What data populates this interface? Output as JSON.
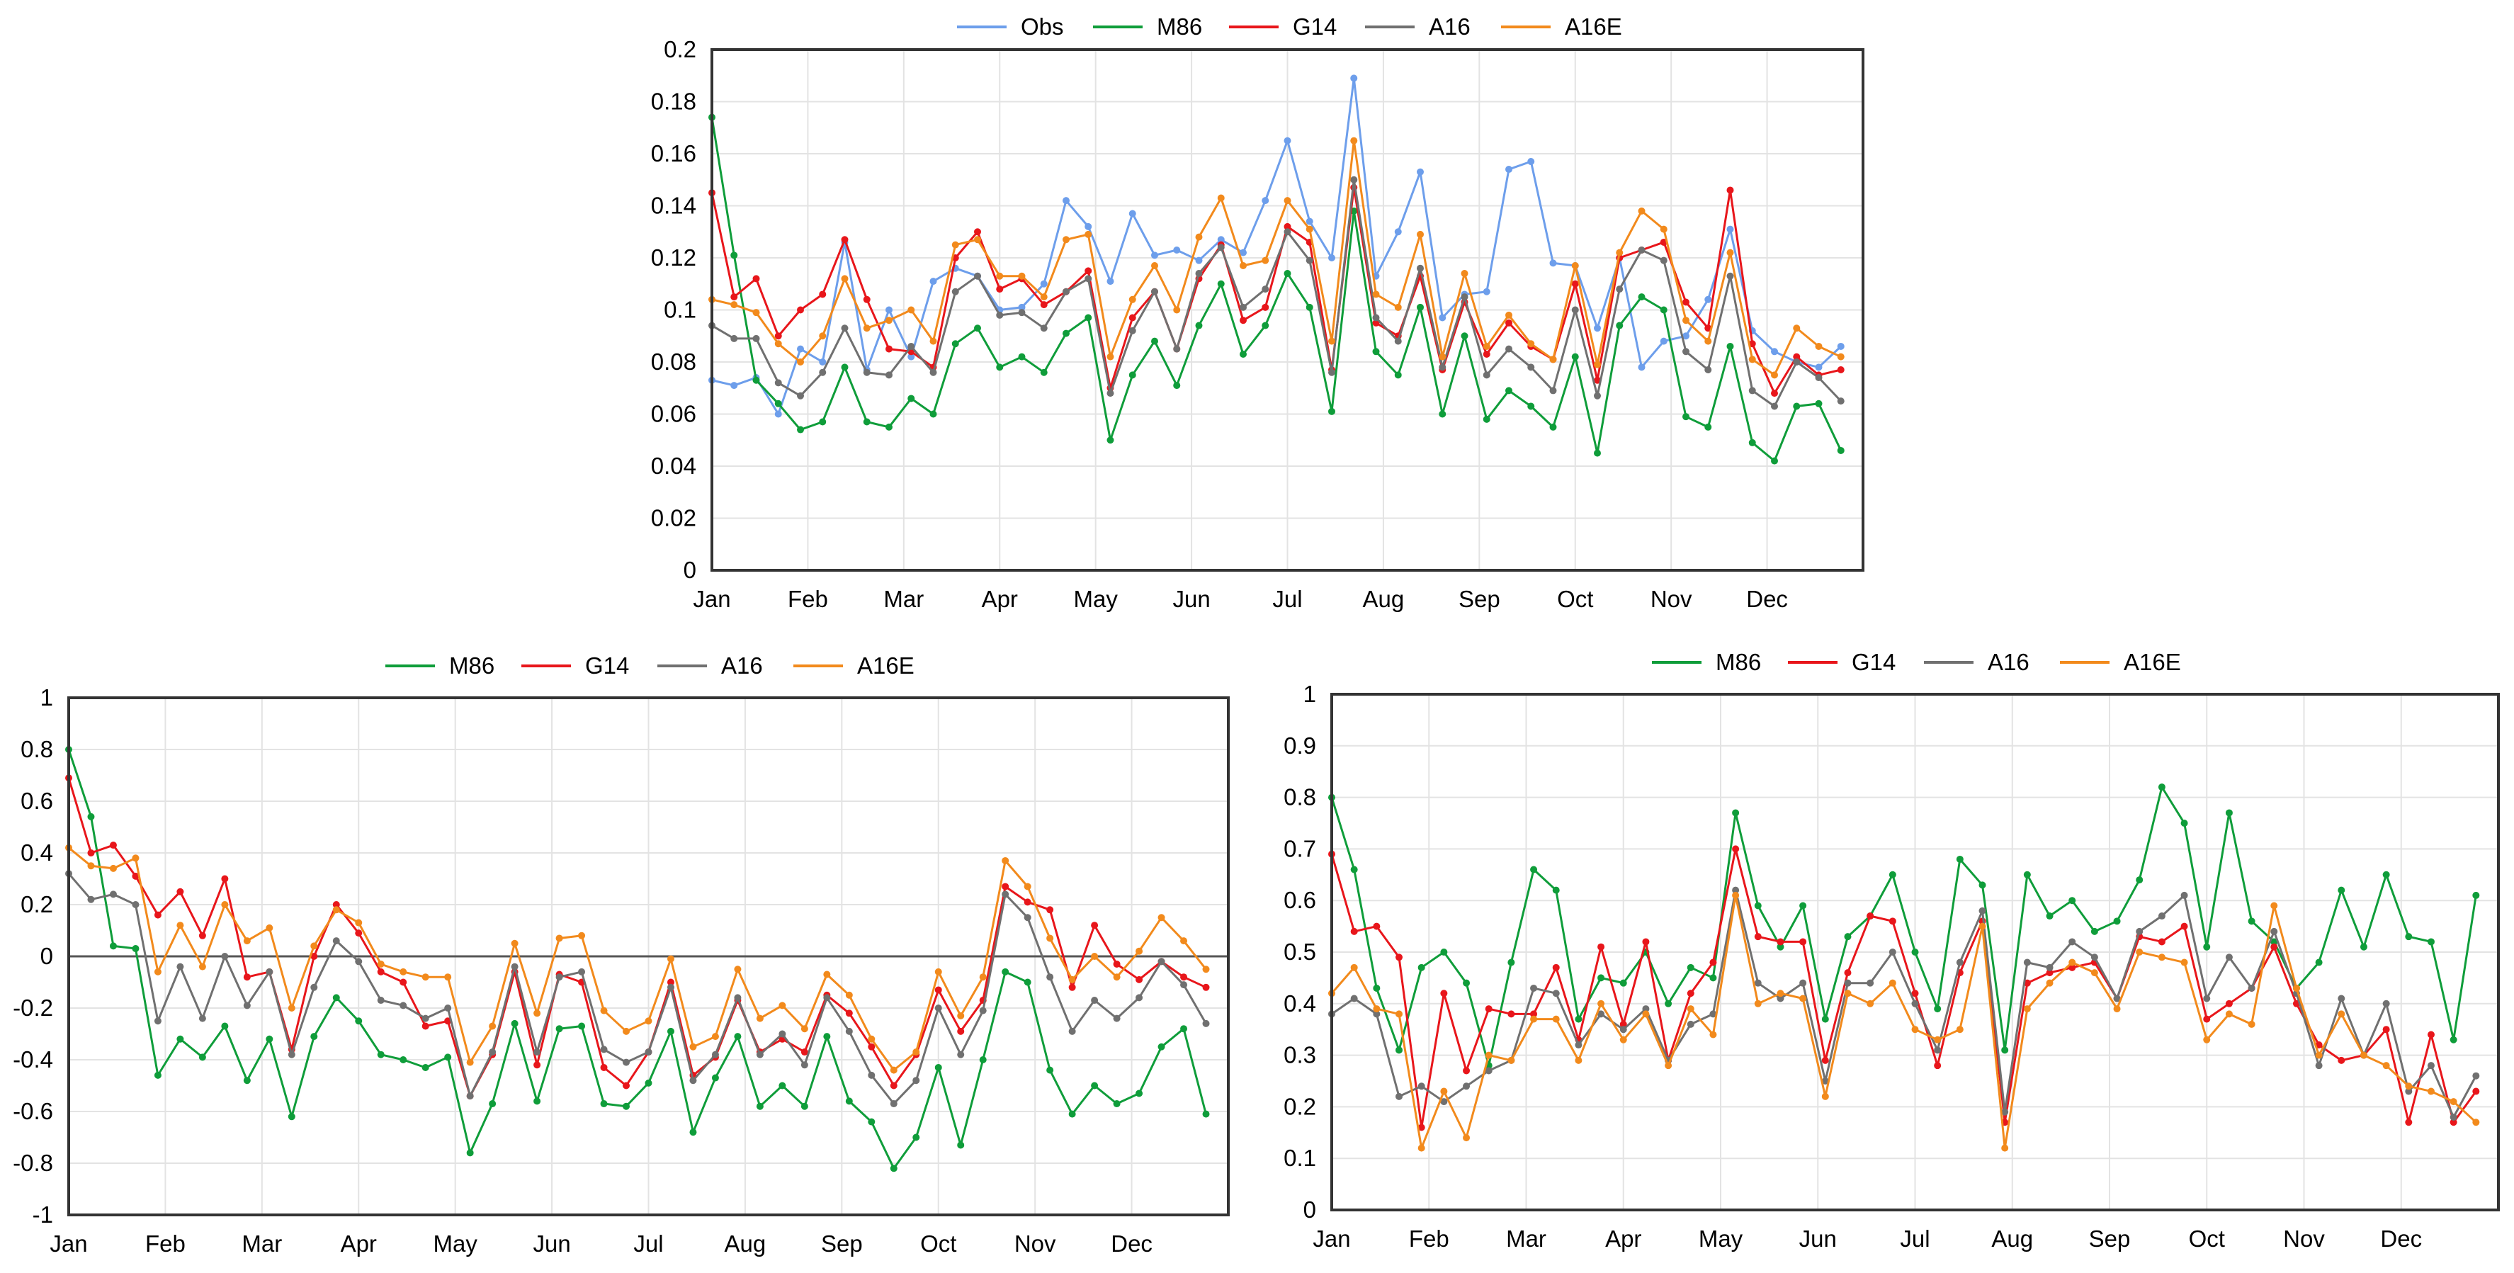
{
  "months": [
    "Jan",
    "Feb",
    "Mar",
    "Apr",
    "May",
    "Jun",
    "Jul",
    "Aug",
    "Sep",
    "Oct",
    "Nov",
    "Dec"
  ],
  "colors": {
    "Obs": "#6d9eeb",
    "M86": "#0f9d3a",
    "G14": "#e8161b",
    "A16": "#707070",
    "A16E": "#f28a1c"
  },
  "chart_data": [
    {
      "type": "line",
      "ylim": [
        0,
        0.2
      ],
      "yticks": [
        0,
        0.02,
        0.04,
        0.06,
        0.08,
        0.1,
        0.12,
        0.14,
        0.16,
        0.18,
        0.2
      ],
      "ytick_labels": [
        "0",
        "0.02",
        "0.04",
        "0.06",
        "0.08",
        "0.1",
        "0.12",
        "0.14",
        "0.16",
        "0.18",
        "0.2"
      ],
      "xticks": [
        "Jan",
        "Feb",
        "Mar",
        "Apr",
        "May",
        "Jun",
        "Jul",
        "Aug",
        "Sep",
        "Oct",
        "Nov",
        "Dec"
      ],
      "legend": [
        "Obs",
        "M86",
        "G14",
        "A16",
        "A16E"
      ],
      "legend_position": "top-center",
      "grid": true,
      "zero_line": false,
      "series": [
        {
          "name": "Obs",
          "values": [
            0.073,
            0.071,
            0.074,
            0.06,
            0.085,
            0.08,
            0.126,
            0.077,
            0.1,
            0.082,
            0.111,
            0.116,
            0.113,
            0.1,
            0.101,
            0.11,
            0.142,
            0.132,
            0.111,
            0.137,
            0.121,
            0.123,
            0.119,
            0.127,
            0.122,
            0.142,
            0.165,
            0.134,
            0.12,
            0.189,
            0.113,
            0.13,
            0.153,
            0.097,
            0.106,
            0.107,
            0.154,
            0.157,
            0.118,
            0.117,
            0.093,
            0.12,
            0.078,
            0.088,
            0.09,
            0.104,
            0.131,
            0.092,
            0.084,
            0.08,
            0.078,
            0.086
          ]
        },
        {
          "name": "M86",
          "values": [
            0.174,
            0.121,
            0.073,
            0.064,
            0.054,
            0.057,
            0.078,
            0.057,
            0.055,
            0.066,
            0.06,
            0.087,
            0.093,
            0.078,
            0.082,
            0.076,
            0.091,
            0.097,
            0.05,
            0.075,
            0.088,
            0.071,
            0.094,
            0.11,
            0.083,
            0.094,
            0.114,
            0.101,
            0.061,
            0.138,
            0.084,
            0.075,
            0.101,
            0.06,
            0.09,
            0.058,
            0.069,
            0.063,
            0.055,
            0.082,
            0.045,
            0.094,
            0.105,
            0.1,
            0.059,
            0.055,
            0.086,
            0.049,
            0.042,
            0.063,
            0.064,
            0.046
          ]
        },
        {
          "name": "G14",
          "values": [
            0.145,
            0.105,
            0.112,
            0.09,
            0.1,
            0.106,
            0.127,
            0.104,
            0.085,
            0.084,
            0.078,
            0.12,
            0.13,
            0.108,
            0.112,
            0.102,
            0.107,
            0.115,
            0.07,
            0.097,
            0.107,
            0.085,
            0.112,
            0.125,
            0.096,
            0.101,
            0.132,
            0.126,
            0.077,
            0.147,
            0.095,
            0.09,
            0.113,
            0.077,
            0.103,
            0.083,
            0.095,
            0.086,
            0.081,
            0.11,
            0.073,
            0.12,
            0.123,
            0.126,
            0.103,
            0.093,
            0.146,
            0.087,
            0.068,
            0.082,
            0.075,
            0.077
          ]
        },
        {
          "name": "A16",
          "values": [
            0.094,
            0.089,
            0.089,
            0.072,
            0.067,
            0.076,
            0.093,
            0.076,
            0.075,
            0.086,
            0.076,
            0.107,
            0.113,
            0.098,
            0.099,
            0.093,
            0.107,
            0.112,
            0.068,
            0.092,
            0.107,
            0.085,
            0.114,
            0.124,
            0.101,
            0.108,
            0.13,
            0.119,
            0.076,
            0.15,
            0.097,
            0.088,
            0.116,
            0.078,
            0.105,
            0.075,
            0.085,
            0.078,
            0.069,
            0.1,
            0.067,
            0.108,
            0.123,
            0.119,
            0.084,
            0.077,
            0.113,
            0.069,
            0.063,
            0.08,
            0.074,
            0.065
          ]
        },
        {
          "name": "A16E",
          "values": [
            0.104,
            0.102,
            0.099,
            0.087,
            0.08,
            0.09,
            0.112,
            0.093,
            0.096,
            0.1,
            0.088,
            0.125,
            0.127,
            0.113,
            0.113,
            0.105,
            0.127,
            0.129,
            0.082,
            0.104,
            0.117,
            0.1,
            0.128,
            0.143,
            0.117,
            0.119,
            0.142,
            0.131,
            0.088,
            0.165,
            0.106,
            0.101,
            0.129,
            0.082,
            0.114,
            0.086,
            0.098,
            0.087,
            0.081,
            0.117,
            0.079,
            0.122,
            0.138,
            0.131,
            0.096,
            0.088,
            0.122,
            0.081,
            0.075,
            0.093,
            0.086,
            0.082
          ]
        }
      ]
    },
    {
      "type": "line",
      "ylim": [
        -1,
        1
      ],
      "yticks": [
        -1,
        -0.8,
        -0.6,
        -0.4,
        -0.2,
        0,
        0.2,
        0.4,
        0.6,
        0.8,
        1
      ],
      "ytick_labels": [
        "-1",
        "-0.8",
        "-0.6",
        "-0.4",
        "-0.2",
        "0",
        "0.2",
        "0.4",
        "0.6",
        "0.8",
        "1"
      ],
      "xticks": [
        "Jan",
        "Feb",
        "Mar",
        "Apr",
        "May",
        "Jun",
        "Jul",
        "Aug",
        "Sep",
        "Oct",
        "Nov",
        "Dec"
      ],
      "legend": [
        "M86",
        "G14",
        "A16",
        "A16E"
      ],
      "legend_position": "top-center",
      "grid": true,
      "zero_line": true,
      "series": [
        {
          "name": "M86",
          "values": [
            0.8,
            0.54,
            0.04,
            0.03,
            -0.46,
            -0.32,
            -0.39,
            -0.27,
            -0.48,
            -0.32,
            -0.62,
            -0.31,
            -0.16,
            -0.25,
            -0.38,
            -0.4,
            -0.43,
            -0.39,
            -0.76,
            -0.57,
            -0.26,
            -0.56,
            -0.28,
            -0.27,
            -0.57,
            -0.58,
            -0.49,
            -0.29,
            -0.68,
            -0.47,
            -0.31,
            -0.58,
            -0.5,
            -0.58,
            -0.31,
            -0.56,
            -0.64,
            -0.82,
            -0.7,
            -0.43,
            -0.73,
            -0.4,
            -0.06,
            -0.1,
            -0.44,
            -0.61,
            -0.5,
            -0.57,
            -0.53,
            -0.35,
            -0.28,
            -0.61
          ]
        },
        {
          "name": "G14",
          "values": [
            0.69,
            0.4,
            0.43,
            0.31,
            0.16,
            0.25,
            0.08,
            0.3,
            -0.08,
            -0.06,
            -0.36,
            0.0,
            0.2,
            0.09,
            -0.06,
            -0.1,
            -0.27,
            -0.25,
            -0.54,
            -0.38,
            -0.06,
            -0.42,
            -0.07,
            -0.1,
            -0.43,
            -0.5,
            -0.37,
            -0.1,
            -0.46,
            -0.39,
            -0.17,
            -0.37,
            -0.32,
            -0.37,
            -0.15,
            -0.22,
            -0.35,
            -0.5,
            -0.38,
            -0.13,
            -0.29,
            -0.17,
            0.27,
            0.21,
            0.18,
            -0.12,
            0.12,
            -0.03,
            -0.09,
            -0.02,
            -0.08,
            -0.12
          ]
        },
        {
          "name": "A16",
          "values": [
            0.32,
            0.22,
            0.24,
            0.2,
            -0.25,
            -0.04,
            -0.24,
            0.0,
            -0.19,
            -0.06,
            -0.38,
            -0.12,
            0.06,
            -0.02,
            -0.17,
            -0.19,
            -0.24,
            -0.2,
            -0.54,
            -0.37,
            -0.04,
            -0.37,
            -0.08,
            -0.06,
            -0.36,
            -0.41,
            -0.37,
            -0.12,
            -0.48,
            -0.38,
            -0.16,
            -0.38,
            -0.3,
            -0.42,
            -0.16,
            -0.29,
            -0.46,
            -0.57,
            -0.48,
            -0.2,
            -0.38,
            -0.21,
            0.24,
            0.15,
            -0.08,
            -0.29,
            -0.17,
            -0.24,
            -0.16,
            -0.02,
            -0.11,
            -0.26
          ]
        },
        {
          "name": "A16E",
          "values": [
            0.42,
            0.35,
            0.34,
            0.38,
            -0.06,
            0.12,
            -0.04,
            0.2,
            0.06,
            0.11,
            -0.2,
            0.04,
            0.18,
            0.13,
            -0.03,
            -0.06,
            -0.08,
            -0.08,
            -0.41,
            -0.27,
            0.05,
            -0.22,
            0.07,
            0.08,
            -0.21,
            -0.29,
            -0.25,
            -0.01,
            -0.35,
            -0.31,
            -0.05,
            -0.24,
            -0.19,
            -0.28,
            -0.07,
            -0.15,
            -0.32,
            -0.44,
            -0.37,
            -0.06,
            -0.23,
            -0.08,
            0.37,
            0.27,
            0.07,
            -0.09,
            0.0,
            -0.08,
            0.02,
            0.15,
            0.06,
            -0.05
          ]
        }
      ]
    },
    {
      "type": "line",
      "ylim": [
        0,
        1
      ],
      "yticks": [
        0,
        0.1,
        0.2,
        0.3,
        0.4,
        0.5,
        0.6,
        0.7,
        0.8,
        0.9,
        1
      ],
      "ytick_labels": [
        "0",
        "0.1",
        "0.2",
        "0.3",
        "0.4",
        "0.5",
        "0.6",
        "0.7",
        "0.8",
        "0.9",
        "1"
      ],
      "xticks": [
        "Jan",
        "Feb",
        "Mar",
        "Apr",
        "May",
        "Jun",
        "Jul",
        "Aug",
        "Sep",
        "Oct",
        "Nov",
        "Dec"
      ],
      "legend": [
        "M86",
        "G14",
        "A16",
        "A16E"
      ],
      "legend_position": "top-center",
      "grid": true,
      "zero_line": false,
      "series": [
        {
          "name": "M86",
          "values": [
            0.8,
            0.66,
            0.43,
            0.31,
            0.47,
            0.5,
            0.44,
            0.28,
            0.48,
            0.66,
            0.62,
            0.37,
            0.45,
            0.44,
            0.5,
            0.4,
            0.47,
            0.45,
            0.77,
            0.59,
            0.51,
            0.59,
            0.37,
            0.53,
            0.57,
            0.65,
            0.5,
            0.39,
            0.68,
            0.63,
            0.31,
            0.65,
            0.57,
            0.6,
            0.54,
            0.56,
            0.64,
            0.82,
            0.75,
            0.51,
            0.77,
            0.56,
            0.52,
            0.43,
            0.48,
            0.62,
            0.51,
            0.65,
            0.53,
            0.52,
            0.33,
            0.61
          ]
        },
        {
          "name": "G14",
          "values": [
            0.69,
            0.54,
            0.55,
            0.49,
            0.16,
            0.42,
            0.27,
            0.39,
            0.38,
            0.38,
            0.47,
            0.33,
            0.51,
            0.36,
            0.52,
            0.29,
            0.42,
            0.48,
            0.7,
            0.53,
            0.52,
            0.52,
            0.29,
            0.46,
            0.57,
            0.56,
            0.42,
            0.28,
            0.46,
            0.56,
            0.17,
            0.44,
            0.46,
            0.47,
            0.48,
            0.41,
            0.53,
            0.52,
            0.55,
            0.37,
            0.4,
            0.43,
            0.51,
            0.4,
            0.32,
            0.29,
            0.3,
            0.35,
            0.17,
            0.34,
            0.17,
            0.23
          ]
        },
        {
          "name": "A16",
          "values": [
            0.38,
            0.41,
            0.38,
            0.22,
            0.24,
            0.21,
            0.24,
            0.27,
            0.29,
            0.43,
            0.42,
            0.32,
            0.38,
            0.35,
            0.39,
            0.29,
            0.36,
            0.38,
            0.62,
            0.44,
            0.41,
            0.44,
            0.25,
            0.44,
            0.44,
            0.5,
            0.4,
            0.31,
            0.48,
            0.58,
            0.19,
            0.48,
            0.47,
            0.52,
            0.49,
            0.41,
            0.54,
            0.57,
            0.61,
            0.41,
            0.49,
            0.43,
            0.54,
            0.42,
            0.28,
            0.41,
            0.3,
            0.4,
            0.23,
            0.28,
            0.18,
            0.26
          ]
        },
        {
          "name": "A16E",
          "values": [
            0.42,
            0.47,
            0.39,
            0.38,
            0.12,
            0.23,
            0.14,
            0.3,
            0.29,
            0.37,
            0.37,
            0.29,
            0.4,
            0.33,
            0.38,
            0.28,
            0.39,
            0.34,
            0.61,
            0.4,
            0.42,
            0.41,
            0.22,
            0.42,
            0.4,
            0.44,
            0.35,
            0.33,
            0.35,
            0.55,
            0.12,
            0.39,
            0.44,
            0.48,
            0.46,
            0.39,
            0.5,
            0.49,
            0.48,
            0.33,
            0.38,
            0.36,
            0.59,
            0.43,
            0.3,
            0.38,
            0.3,
            0.28,
            0.24,
            0.23,
            0.21,
            0.17
          ]
        }
      ]
    }
  ]
}
